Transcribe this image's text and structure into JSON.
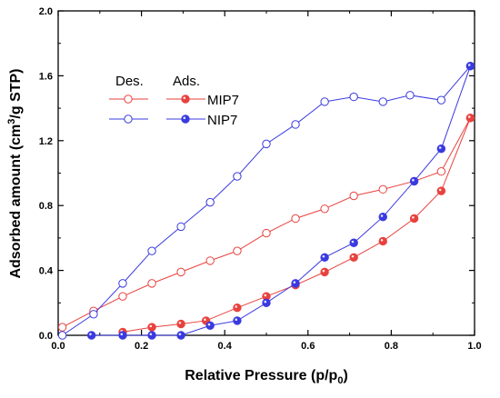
{
  "chart_data": {
    "type": "line",
    "xlabel": "Relative Pressure (p/p",
    "xlabel_sub": "0",
    "xlabel_end": ")",
    "ylabel": "Adsorbed amount (cm",
    "ylabel_sup": "3",
    "ylabel_end": "/g STP)",
    "xlim": [
      0.0,
      1.0
    ],
    "ylim": [
      0.0,
      2.0
    ],
    "xticks": [
      "0.0",
      "0.2",
      "0.4",
      "0.6",
      "0.8",
      "1.0"
    ],
    "yticks": [
      "0.0",
      "0.4",
      "0.8",
      "1.2",
      "1.6",
      "2.0"
    ],
    "legend": {
      "header_des": "Des.",
      "header_ads": "Ads.",
      "rows": [
        {
          "label": "MIP7",
          "color": "#e8423e"
        },
        {
          "label": "NIP7",
          "color": "#3a3ae0"
        }
      ]
    },
    "series": [
      {
        "group": "MIP7",
        "mode": "Des.",
        "color": "#e8423e",
        "marker": "open",
        "x": [
          0.01,
          0.085,
          0.155,
          0.225,
          0.295,
          0.365,
          0.43,
          0.5,
          0.57,
          0.64,
          0.71,
          0.78,
          0.855,
          0.92,
          0.99
        ],
        "y": [
          0.05,
          0.15,
          0.24,
          0.32,
          0.39,
          0.46,
          0.52,
          0.63,
          0.72,
          0.78,
          0.86,
          0.9,
          0.95,
          1.01,
          1.34
        ]
      },
      {
        "group": "MIP7",
        "mode": "Ads.",
        "color": "#e8423e",
        "marker": "filled",
        "x": [
          0.155,
          0.225,
          0.295,
          0.355,
          0.43,
          0.5,
          0.57,
          0.64,
          0.71,
          0.78,
          0.855,
          0.92,
          0.99
        ],
        "y": [
          0.02,
          0.05,
          0.07,
          0.09,
          0.17,
          0.24,
          0.31,
          0.39,
          0.48,
          0.58,
          0.72,
          0.89,
          1.34
        ]
      },
      {
        "group": "NIP7",
        "mode": "Des.",
        "color": "#3a3ae0",
        "marker": "open",
        "x": [
          0.01,
          0.085,
          0.155,
          0.225,
          0.295,
          0.365,
          0.43,
          0.5,
          0.57,
          0.64,
          0.71,
          0.78,
          0.845,
          0.92,
          0.99
        ],
        "y": [
          0.0,
          0.13,
          0.32,
          0.52,
          0.67,
          0.82,
          0.98,
          1.18,
          1.3,
          1.44,
          1.47,
          1.44,
          1.48,
          1.45,
          1.66
        ]
      },
      {
        "group": "NIP7",
        "mode": "Ads.",
        "color": "#3a3ae0",
        "marker": "filled",
        "x": [
          0.08,
          0.155,
          0.225,
          0.295,
          0.365,
          0.43,
          0.5,
          0.57,
          0.64,
          0.71,
          0.78,
          0.855,
          0.92,
          0.99
        ],
        "y": [
          0.0,
          0.0,
          0.0,
          0.0,
          0.06,
          0.09,
          0.2,
          0.32,
          0.48,
          0.57,
          0.73,
          0.95,
          1.15,
          1.66
        ]
      }
    ]
  }
}
